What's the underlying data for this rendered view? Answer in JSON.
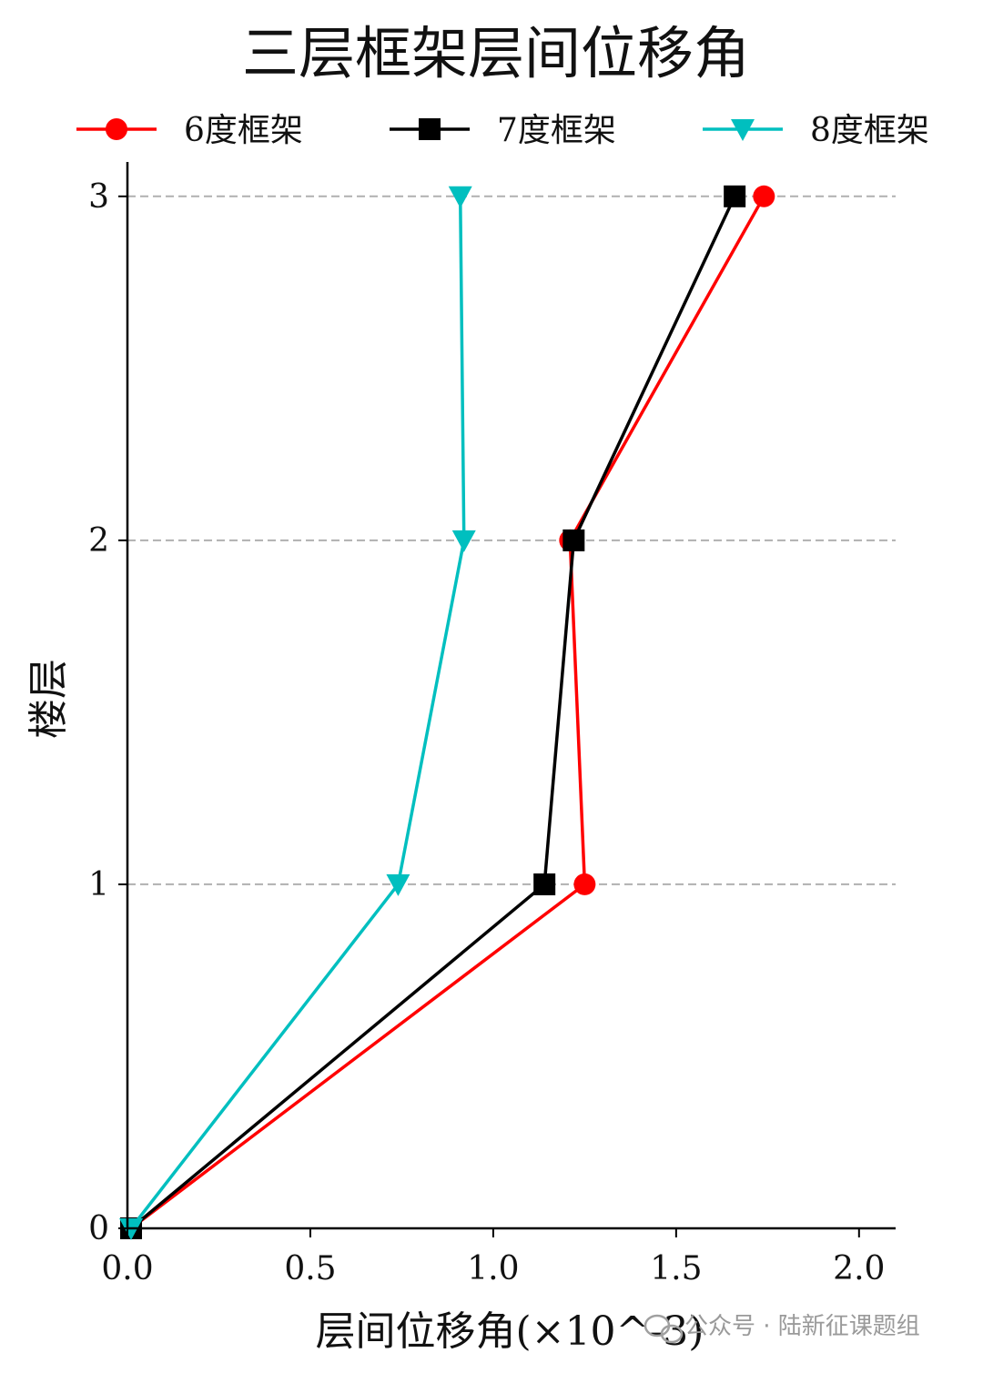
{
  "chart_data": {
    "type": "line",
    "title": "三层框架层间位移角",
    "xlabel": "层间位移角(×10^-3)",
    "ylabel": "楼层",
    "xlim": [
      0,
      2.1
    ],
    "ylim": [
      0,
      3.1
    ],
    "x_ticks": [
      "0.0",
      "0.5",
      "1.0",
      "1.5",
      "2.0"
    ],
    "y_ticks": [
      "0",
      "1",
      "2",
      "3"
    ],
    "grid": "horizontal dashed at floors 1–3",
    "legend_position": "top",
    "series": [
      {
        "name": "6度框架",
        "color": "#ff0000",
        "marker": "circle",
        "points": [
          [
            0.01,
            0
          ],
          [
            1.25,
            1
          ],
          [
            1.21,
            2
          ],
          [
            1.74,
            3
          ]
        ]
      },
      {
        "name": "7度框架",
        "color": "#000000",
        "marker": "square",
        "points": [
          [
            0.01,
            0
          ],
          [
            1.14,
            1
          ],
          [
            1.22,
            2
          ],
          [
            1.66,
            3
          ]
        ]
      },
      {
        "name": "8度框架",
        "color": "#00bfbf",
        "marker": "triangle-down",
        "points": [
          [
            0.01,
            0
          ],
          [
            0.74,
            1
          ],
          [
            0.92,
            2
          ],
          [
            0.91,
            3
          ]
        ]
      }
    ]
  },
  "watermark": "公众号 · 陆新征课题组"
}
